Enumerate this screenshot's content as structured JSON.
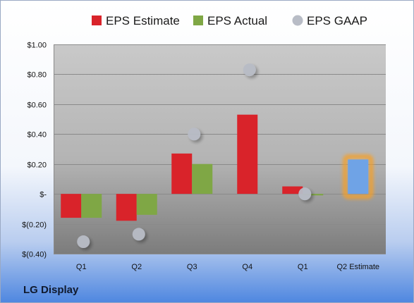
{
  "company": "LG Display",
  "chart_data": {
    "type": "bar",
    "categories": [
      "Q1",
      "Q2",
      "Q3",
      "Q4",
      "Q1",
      "Q2 Estimate"
    ],
    "series": [
      {
        "name": "EPS Estimate",
        "color": "#d9232a",
        "values": [
          -0.16,
          -0.18,
          0.27,
          0.53,
          0.05,
          null
        ]
      },
      {
        "name": "EPS Actual",
        "color": "#7fa745",
        "values": [
          -0.16,
          -0.14,
          0.2,
          null,
          -0.01,
          null
        ]
      },
      {
        "name": "EPS GAAP",
        "color": "#b8bcc6",
        "marker": "circle",
        "values": [
          -0.32,
          -0.27,
          0.4,
          0.83,
          0.0,
          null
        ]
      }
    ],
    "highlight": {
      "category": "Q2 Estimate",
      "value": 0.23,
      "color": "#6fa3e6",
      "glow": "#f5a02a"
    },
    "yticks": [
      {
        "value": 1.0,
        "label": "$1.00"
      },
      {
        "value": 0.8,
        "label": "$0.80"
      },
      {
        "value": 0.6,
        "label": "$0.60"
      },
      {
        "value": 0.4,
        "label": "$0.40"
      },
      {
        "value": 0.2,
        "label": "$0.20"
      },
      {
        "value": 0.0,
        "label": "$-"
      },
      {
        "value": -0.2,
        "label": "$(0.20)"
      },
      {
        "value": -0.4,
        "label": "$(0.40)"
      }
    ],
    "ylim": [
      -0.4,
      1.0
    ],
    "grid": true,
    "legend": "top"
  }
}
